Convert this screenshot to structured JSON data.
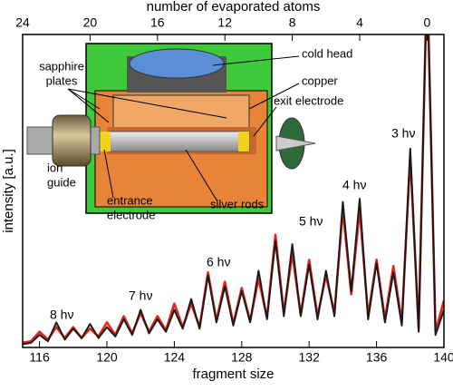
{
  "chart_data": {
    "type": "line",
    "xlabel": "fragment size",
    "ylabel": "intensity [a.u.]",
    "x2label": "number of evaporated atoms",
    "xlim": [
      115,
      140
    ],
    "xticks": [
      116,
      120,
      124,
      128,
      132,
      136,
      140
    ],
    "x2lim": [
      24,
      -1
    ],
    "x2ticks": [
      24,
      20,
      16,
      12,
      8,
      4,
      0
    ],
    "ylim": [
      0,
      100
    ],
    "x": [
      115,
      115.5,
      116,
      116.5,
      117,
      117.5,
      118,
      118.5,
      119,
      119.5,
      120,
      120.5,
      121,
      121.5,
      122,
      122.5,
      123,
      123.5,
      124,
      124.5,
      125,
      125.5,
      126,
      126.5,
      127,
      127.5,
      128,
      128.5,
      129,
      129.5,
      130,
      130.5,
      131,
      131.5,
      132,
      132.5,
      133,
      133.5,
      134,
      134.5,
      135,
      135.5,
      136,
      136.5,
      137,
      137.5,
      138,
      138.5,
      139,
      139.5,
      140
    ],
    "series": [
      {
        "name": "red",
        "color": "#e8231b",
        "values": [
          1.5,
          2,
          5,
          2.5,
          6.5,
          3,
          6.5,
          3,
          6,
          3.5,
          8,
          4,
          10,
          4.5,
          11,
          5,
          10,
          5.5,
          14,
          6.5,
          14,
          6.5,
          24,
          8.5,
          21,
          7.5,
          19,
          8.5,
          22,
          9.5,
          36,
          11,
          30,
          10.5,
          28,
          10,
          23,
          11,
          44,
          17,
          44,
          10,
          28,
          9,
          26,
          8,
          61,
          6,
          120,
          5,
          15
        ]
      },
      {
        "name": "black",
        "color": "#1a1a1a",
        "values": [
          1,
          1.5,
          4,
          2,
          8,
          2.5,
          6,
          3,
          7.5,
          3,
          6.5,
          3.5,
          9,
          4,
          12,
          4.5,
          9,
          5,
          12,
          6,
          15.5,
          6,
          23,
          8,
          19.5,
          7,
          18,
          8,
          24.5,
          9,
          34,
          10,
          33,
          10,
          26.5,
          9,
          24.5,
          10,
          46.5,
          18,
          47.5,
          9,
          27,
          8,
          24,
          7,
          63.5,
          5,
          120,
          4,
          12
        ]
      }
    ],
    "peak_labels": [
      "8 hν",
      "7 hν",
      "6 hν",
      "5 hν",
      "4 hν",
      "3 hν"
    ],
    "annotations": [
      [
        "cold head"
      ],
      [
        "copper"
      ],
      [
        "exit electrode"
      ],
      [
        "sapphire",
        "plates"
      ],
      [
        "ion",
        "guide"
      ],
      [
        "entrance",
        "electrode"
      ],
      [
        "silver rods"
      ]
    ]
  }
}
